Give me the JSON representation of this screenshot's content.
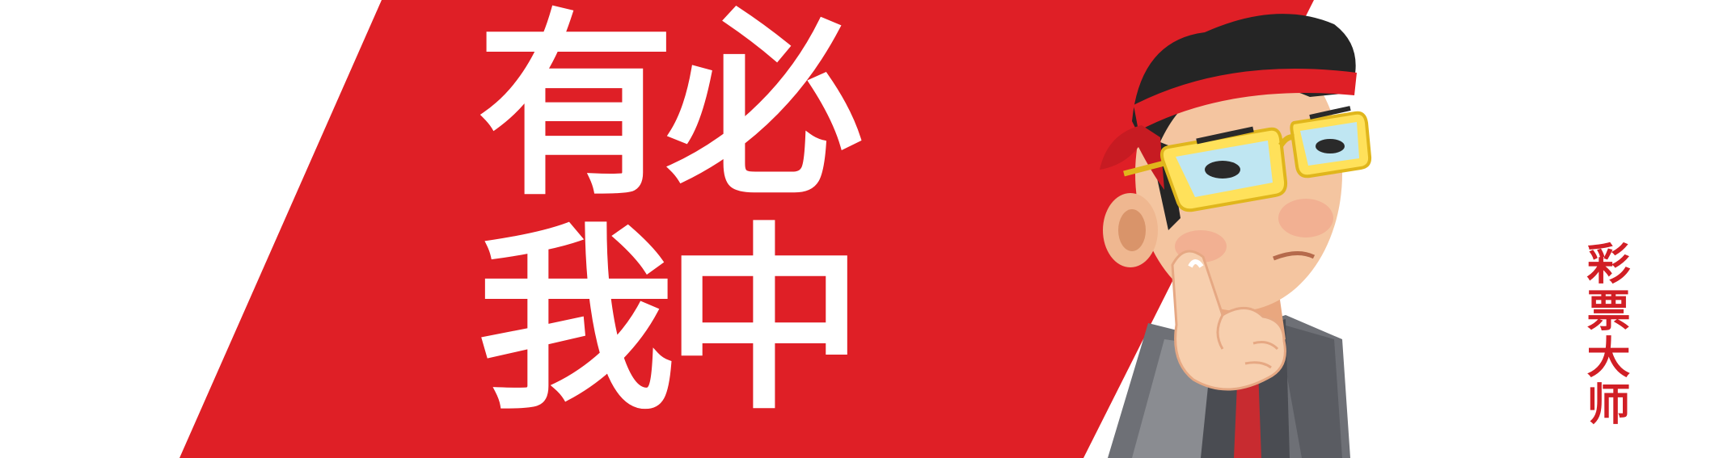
{
  "banner": {
    "slogan_line1": "有必",
    "slogan_line2": "我中",
    "brand": "彩票大师",
    "colors": {
      "red": "#df1f26",
      "white": "#ffffff",
      "brand_red": "#d11e25"
    }
  },
  "mascot": {
    "icon": "mascot-man-thinking-icon",
    "accessories": [
      "headband-icon",
      "glasses-icon",
      "hand-on-chin-icon"
    ]
  }
}
